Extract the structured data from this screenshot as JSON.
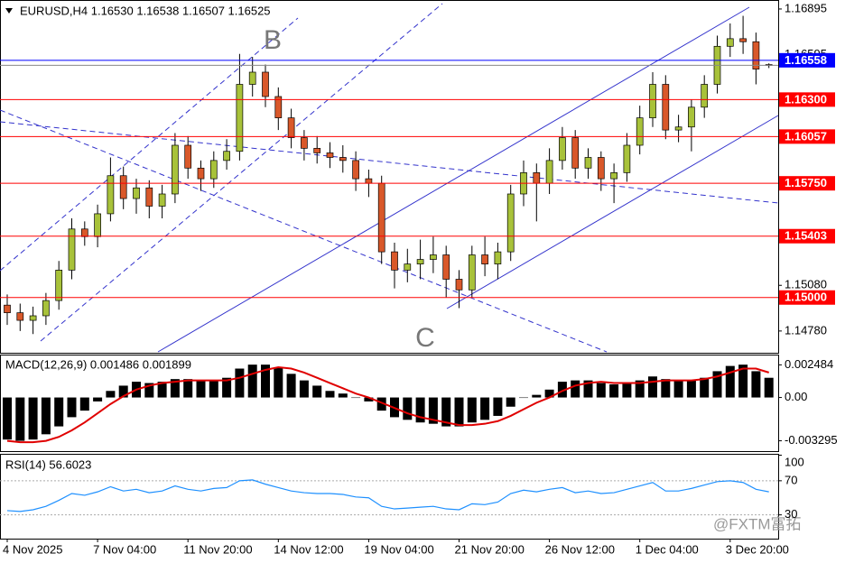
{
  "chart_data": [
    {
      "type": "candlestick",
      "title": "EURUSD,H4 1.16530 1.16538 1.16507 1.16525",
      "annotations": [
        "B",
        "C"
      ],
      "watermark": "@FXTM富拓",
      "up_color": "#a8c23a",
      "down_color": "#d9582a",
      "ylim": [
        1.14637,
        1.16954
      ],
      "yticks": [
        1.16895,
        1.16595,
        1.1508,
        1.1478
      ],
      "ytick_labels": [
        "1.16895",
        "1.16595",
        "1.15080",
        "1.14780"
      ],
      "levels": [
        {
          "value": 1.16558,
          "label": "1.16558",
          "color": "#0000ff"
        },
        {
          "value": 1.163,
          "label": "1.16300",
          "color": "#ff0000"
        },
        {
          "value": 1.16057,
          "label": "1.16057",
          "color": "#ff0000"
        },
        {
          "value": 1.1575,
          "label": "1.15750",
          "color": "#ff0000"
        },
        {
          "value": 1.15403,
          "label": "1.15403",
          "color": "#ff0000"
        },
        {
          "value": 1.15,
          "label": "1.15000",
          "color": "#ff0000"
        }
      ],
      "categories": [
        "4 Nov 2025",
        null,
        null,
        null,
        null,
        null,
        null,
        "7 Nov 04:00",
        null,
        null,
        null,
        null,
        null,
        null,
        "11 Nov 20:00",
        null,
        null,
        null,
        null,
        null,
        null,
        "14 Nov 12:00",
        null,
        null,
        null,
        null,
        null,
        null,
        "19 Nov 04:00",
        null,
        null,
        null,
        null,
        null,
        null,
        "21 Nov 20:00",
        null,
        null,
        null,
        null,
        null,
        null,
        "26 Nov 12:00",
        null,
        null,
        null,
        null,
        null,
        null,
        "1 Dec 04:00",
        null,
        null,
        null,
        null,
        null,
        null,
        "3 Dec 20:00",
        null,
        null,
        null
      ],
      "candles": [
        [
          1.1495,
          1.1502,
          1.1482,
          1.149
        ],
        [
          1.149,
          1.1496,
          1.1478,
          1.1485
        ],
        [
          1.1485,
          1.1494,
          1.1476,
          1.1488
        ],
        [
          1.1488,
          1.1503,
          1.1482,
          1.1498
        ],
        [
          1.1498,
          1.1524,
          1.1492,
          1.1518
        ],
        [
          1.1518,
          1.1552,
          1.1512,
          1.1545
        ],
        [
          1.1545,
          1.155,
          1.1534,
          1.154
        ],
        [
          1.154,
          1.1561,
          1.1533,
          1.1555
        ],
        [
          1.1555,
          1.1592,
          1.155,
          1.158
        ],
        [
          1.158,
          1.1586,
          1.1558,
          1.1565
        ],
        [
          1.1565,
          1.1578,
          1.1555,
          1.1572
        ],
        [
          1.1572,
          1.1577,
          1.1552,
          1.156
        ],
        [
          1.156,
          1.1574,
          1.1552,
          1.1568
        ],
        [
          1.1568,
          1.1608,
          1.1562,
          1.16
        ],
        [
          1.16,
          1.1606,
          1.1578,
          1.1585
        ],
        [
          1.1585,
          1.159,
          1.157,
          1.1578
        ],
        [
          1.1578,
          1.1596,
          1.1572,
          1.159
        ],
        [
          1.159,
          1.1604,
          1.1584,
          1.1596
        ],
        [
          1.1596,
          1.166,
          1.159,
          1.164
        ],
        [
          1.164,
          1.1658,
          1.1632,
          1.1648
        ],
        [
          1.1648,
          1.1653,
          1.1625,
          1.1632
        ],
        [
          1.1632,
          1.1638,
          1.161,
          1.1618
        ],
        [
          1.1618,
          1.1624,
          1.1598,
          1.1605
        ],
        [
          1.1605,
          1.161,
          1.159,
          1.1598
        ],
        [
          1.1598,
          1.1606,
          1.1588,
          1.1595
        ],
        [
          1.1595,
          1.1602,
          1.1585,
          1.1592
        ],
        [
          1.1592,
          1.16,
          1.1582,
          1.159
        ],
        [
          1.159,
          1.1596,
          1.157,
          1.1578
        ],
        [
          1.1578,
          1.1584,
          1.1566,
          1.1575
        ],
        [
          1.1575,
          1.158,
          1.1522,
          1.153
        ],
        [
          1.153,
          1.1536,
          1.1506,
          1.1518
        ],
        [
          1.1518,
          1.1532,
          1.151,
          1.1522
        ],
        [
          1.1522,
          1.1538,
          1.1512,
          1.1525
        ],
        [
          1.1525,
          1.154,
          1.1516,
          1.1528
        ],
        [
          1.1528,
          1.1534,
          1.15,
          1.1512
        ],
        [
          1.1512,
          1.1518,
          1.1493,
          1.1505
        ],
        [
          1.1505,
          1.1534,
          1.15,
          1.1528
        ],
        [
          1.1528,
          1.154,
          1.1514,
          1.1522
        ],
        [
          1.1522,
          1.1536,
          1.1512,
          1.153
        ],
        [
          1.153,
          1.1574,
          1.1524,
          1.1568
        ],
        [
          1.1568,
          1.159,
          1.156,
          1.1582
        ],
        [
          1.1582,
          1.1588,
          1.155,
          1.1575
        ],
        [
          1.1575,
          1.1598,
          1.1568,
          1.159
        ],
        [
          1.159,
          1.1612,
          1.1584,
          1.1605
        ],
        [
          1.1605,
          1.161,
          1.1578,
          1.1585
        ],
        [
          1.1585,
          1.1598,
          1.1578,
          1.1592
        ],
        [
          1.1592,
          1.1596,
          1.157,
          1.1578
        ],
        [
          1.1578,
          1.1588,
          1.1562,
          1.1582
        ],
        [
          1.1582,
          1.1608,
          1.1576,
          1.16
        ],
        [
          1.16,
          1.1626,
          1.1594,
          1.1618
        ],
        [
          1.1618,
          1.1648,
          1.1612,
          1.164
        ],
        [
          1.164,
          1.1646,
          1.1604,
          1.161
        ],
        [
          1.161,
          1.162,
          1.1602,
          1.1612
        ],
        [
          1.1612,
          1.163,
          1.1596,
          1.1625
        ],
        [
          1.1625,
          1.1646,
          1.1618,
          1.164
        ],
        [
          1.164,
          1.1672,
          1.1634,
          1.1665
        ],
        [
          1.1665,
          1.168,
          1.1658,
          1.167
        ],
        [
          1.167,
          1.1685,
          1.166,
          1.1668
        ],
        [
          1.1668,
          1.1674,
          1.164,
          1.165
        ],
        [
          1.1653,
          1.16538,
          1.16507,
          1.16525
        ]
      ]
    },
    {
      "type": "macd",
      "title": "MACD(12,26,9) 0.001486 0.001899",
      "color": "#000000",
      "signal_color": "#e00000",
      "ylim": [
        -0.004082,
        0.003197
      ],
      "yticks": [
        0.002484,
        {
          "value": 0,
          "label": "0.00"
        },
        -0.003295
      ],
      "series": [
        {
          "name": "histogram",
          "values": [
            -0.0032,
            -0.0033,
            -0.0032,
            -0.0028,
            -0.0022,
            -0.0015,
            -0.001,
            -0.0003,
            0.0005,
            0.0009,
            0.0012,
            0.0011,
            0.0012,
            0.0014,
            0.0014,
            0.0013,
            0.0013,
            0.0015,
            0.0022,
            0.0025,
            0.0025,
            0.0023,
            0.0018,
            0.0013,
            0.0009,
            0.0005,
            0.0003,
            0,
            -0.0003,
            -0.001,
            -0.0015,
            -0.0017,
            -0.0019,
            -0.002,
            -0.0022,
            -0.0022,
            -0.0019,
            -0.0017,
            -0.0014,
            -0.0007,
            0,
            0.0002,
            0.0006,
            0.0012,
            0.0013,
            0.0013,
            0.0011,
            0.001,
            0.0011,
            0.0013,
            0.0016,
            0.0014,
            0.0013,
            0.0013,
            0.0015,
            0.002,
            0.0024,
            0.0025,
            0.002,
            0.0015
          ]
        },
        {
          "name": "signal",
          "values": [
            -0.0033,
            -0.0034,
            -0.0034,
            -0.0033,
            -0.003,
            -0.0025,
            -0.0019,
            -0.0012,
            -0.0005,
            0.0001,
            0.0006,
            0.0009,
            0.0011,
            0.0012,
            0.0013,
            0.0013,
            0.0013,
            0.0013,
            0.0015,
            0.0018,
            0.0021,
            0.0023,
            0.0022,
            0.0019,
            0.0015,
            0.0011,
            0.0007,
            0.0003,
            0,
            -0.0004,
            -0.0008,
            -0.0012,
            -0.0015,
            -0.0017,
            -0.0019,
            -0.0021,
            -0.0021,
            -0.002,
            -0.0018,
            -0.0014,
            -0.0009,
            -0.0004,
            0,
            0.0005,
            0.0009,
            0.0011,
            0.0012,
            0.0011,
            0.0011,
            0.0011,
            0.0012,
            0.0013,
            0.0013,
            0.0013,
            0.0014,
            0.0016,
            0.0019,
            0.0022,
            0.0022,
            0.0019
          ]
        }
      ]
    },
    {
      "type": "line",
      "title": "RSI(14) 56.6023",
      "color": "#1e90ff",
      "ylim": [
        0,
        100
      ],
      "yticks": [
        100,
        70,
        30
      ],
      "levels": [
        70,
        30
      ],
      "values": [
        35,
        34,
        36,
        40,
        47,
        55,
        53,
        57,
        63,
        58,
        60,
        56,
        58,
        64,
        60,
        58,
        61,
        62,
        70,
        71,
        66,
        62,
        58,
        56,
        55,
        55,
        54,
        51,
        50,
        40,
        37,
        38,
        39,
        40,
        37,
        36,
        43,
        42,
        45,
        55,
        59,
        57,
        60,
        62,
        56,
        58,
        55,
        56,
        60,
        64,
        68,
        58,
        58,
        61,
        65,
        69,
        70,
        68,
        60,
        57
      ]
    }
  ]
}
